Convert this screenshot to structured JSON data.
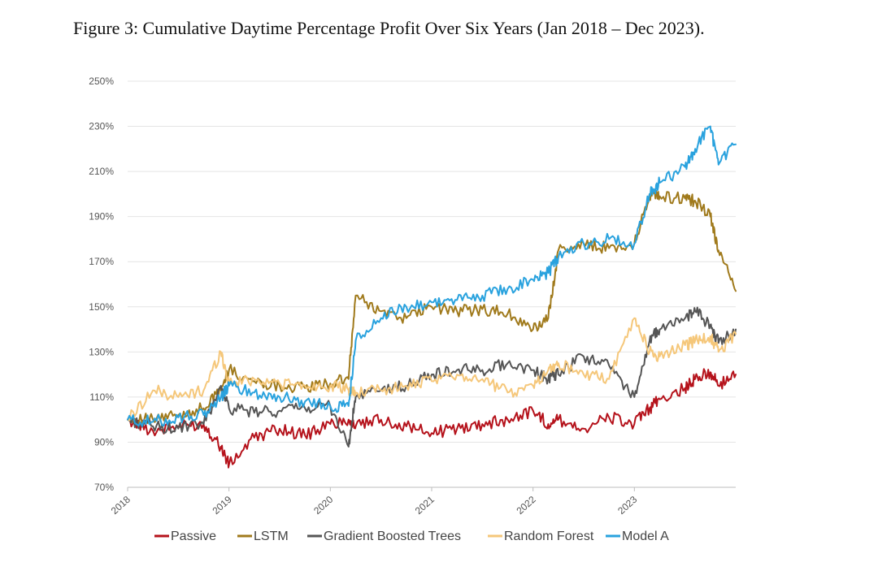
{
  "caption": "Figure 3: Cumulative Daytime Percentage Profit Over Six Years (Jan 2018 – Dec 2023).",
  "chart_data": {
    "type": "line",
    "title": "Figure 3: Cumulative Daytime Percentage Profit Over Six Years (Jan 2018 – Dec 2023).",
    "xlabel": "",
    "ylabel": "",
    "x_range": [
      2018.0,
      2024.0
    ],
    "ylim": [
      70,
      250
    ],
    "y_ticks": [
      70,
      90,
      110,
      130,
      150,
      170,
      190,
      210,
      230,
      250
    ],
    "y_tick_labels": [
      "70%",
      "90%",
      "110%",
      "130%",
      "150%",
      "170%",
      "190%",
      "210%",
      "230%",
      "250%"
    ],
    "x_ticks": [
      2018,
      2019,
      2020,
      2021,
      2022,
      2023
    ],
    "x_tick_labels": [
      "2018",
      "2019",
      "2020",
      "2021",
      "2022",
      "2023"
    ],
    "grid": true,
    "legend_position": "bottom",
    "x": [
      2018.0,
      2018.25,
      2018.5,
      2018.75,
      2018.92,
      2019.0,
      2019.25,
      2019.5,
      2019.75,
      2020.0,
      2020.18,
      2020.25,
      2020.5,
      2020.75,
      2021.0,
      2021.25,
      2021.5,
      2021.75,
      2022.0,
      2022.15,
      2022.25,
      2022.5,
      2022.75,
      2023.0,
      2023.15,
      2023.25,
      2023.5,
      2023.6,
      2023.75,
      2023.83,
      2024.0
    ],
    "series": [
      {
        "name": "Passive",
        "color": "#b5121b",
        "values": [
          100,
          95,
          97,
          98,
          88,
          80,
          92,
          96,
          93,
          98,
          100,
          97,
          100,
          97,
          94,
          96,
          98,
          100,
          104,
          98,
          100,
          96,
          101,
          98,
          105,
          109,
          114,
          118,
          121,
          115,
          120
        ]
      },
      {
        "name": "LSTM",
        "color": "#a07a1c",
        "values": [
          100,
          100,
          102,
          105,
          113,
          122,
          117,
          115,
          114,
          116,
          118,
          155,
          148,
          145,
          150,
          148,
          149,
          147,
          140,
          145,
          175,
          178,
          176,
          178,
          200,
          199,
          198,
          197,
          190,
          175,
          157
        ]
      },
      {
        "name": "Gradient Boosted Trees",
        "color": "#555555",
        "values": [
          100,
          97,
          96,
          98,
          115,
          105,
          103,
          104,
          105,
          106,
          88,
          110,
          113,
          115,
          120,
          122,
          122,
          125,
          122,
          118,
          120,
          128,
          124,
          110,
          135,
          140,
          145,
          148,
          142,
          134,
          140
        ]
      },
      {
        "name": "Random Forest",
        "color": "#f5c77a",
        "values": [
          100,
          113,
          110,
          113,
          130,
          116,
          118,
          116,
          115,
          115,
          113,
          112,
          113,
          115,
          117,
          120,
          118,
          112,
          115,
          122,
          125,
          120,
          118,
          145,
          130,
          128,
          133,
          135,
          137,
          130,
          138
        ]
      },
      {
        "name": "Model A",
        "color": "#29a2de",
        "values": [
          100,
          99,
          101,
          102,
          110,
          115,
          112,
          110,
          108,
          106,
          106,
          135,
          145,
          150,
          152,
          153,
          155,
          158,
          162,
          165,
          172,
          178,
          180,
          178,
          200,
          205,
          212,
          220,
          230,
          213,
          222
        ]
      }
    ]
  },
  "legend_items": [
    "Passive",
    "LSTM",
    "Gradient Boosted Trees",
    "Random Forest",
    "Model A"
  ]
}
